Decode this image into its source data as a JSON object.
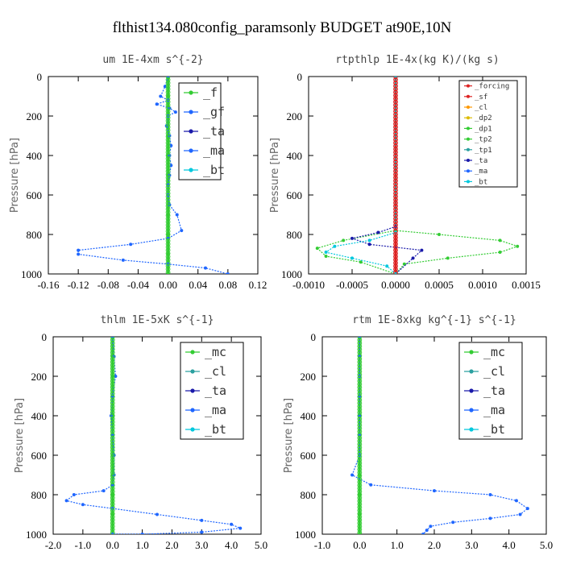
{
  "figure": {
    "title": "flthist134.080config_paramsonly  BUDGET at90E,10N"
  },
  "colors": {
    "green": "#33cc33",
    "blue": "#1f66ff",
    "navy": "#1a1aaa",
    "cyan": "#00c8dd",
    "red": "#dd2222",
    "orange": "#ff9900",
    "gold": "#ddbb00",
    "teal": "#2aa0a0"
  },
  "chart_data": [
    {
      "type": "line",
      "title": "um  1E-4xm s^{-2}",
      "ylabel": "Pressure [hPa]",
      "xlim": [
        -0.16,
        0.12
      ],
      "ylim": [
        1000,
        0
      ],
      "xticks": [
        "-0.16",
        "-0.12",
        "-0.08",
        "-0.04",
        "0.00",
        "0.04",
        "0.08",
        "0.12"
      ],
      "yticks": [
        "0",
        "200",
        "400",
        "600",
        "800",
        "1000"
      ],
      "legend": [
        "_f",
        "_gf",
        "_ta",
        "_ma",
        "_bt"
      ],
      "series": [
        {
          "name": "_f",
          "color_key": "green",
          "x": [
            0,
            0,
            0,
            0,
            0,
            0,
            0,
            0,
            0,
            0,
            0
          ],
          "y": [
            0,
            100,
            200,
            300,
            400,
            500,
            600,
            700,
            800,
            900,
            1000
          ]
        },
        {
          "name": "_ta",
          "color_key": "blue",
          "x": [
            0.0,
            -0.004,
            -0.01,
            0.0,
            -0.015,
            0.002,
            0.01,
            0.0,
            -0.002,
            0.002,
            0.004,
            0.002,
            0.004,
            0.002,
            0.0,
            0.0,
            0.002,
            0.012,
            0.018,
            0.0,
            -0.05,
            -0.12,
            -0.12,
            -0.06,
            0.0,
            0.05,
            0.08
          ],
          "y": [
            0,
            50,
            100,
            120,
            140,
            160,
            180,
            200,
            250,
            300,
            350,
            400,
            450,
            500,
            550,
            600,
            650,
            700,
            780,
            820,
            850,
            880,
            900,
            930,
            950,
            970,
            1000
          ]
        }
      ]
    },
    {
      "type": "line",
      "title": "rtpthlp  1E-4x(kg K)/(kg s)",
      "ylabel": "Pressure [hPa]",
      "xlim": [
        -0.001,
        0.0015
      ],
      "ylim": [
        1000,
        0
      ],
      "xticks": [
        "-0.0010",
        "-0.0005",
        "0.0000",
        "0.0005",
        "0.0010",
        "0.0015"
      ],
      "yticks": [
        "0",
        "200",
        "400",
        "600",
        "800",
        "1000"
      ],
      "legend": [
        "_forcing",
        "_sf",
        "_cl",
        "_dp2",
        "_dp1",
        "_tp2",
        "_tp1",
        "_ta",
        "_ma",
        "_bt"
      ],
      "series": [
        {
          "name": "_forcing",
          "color_key": "red",
          "x": [
            0,
            0
          ],
          "y": [
            0,
            1000
          ]
        },
        {
          "name": "_tp2",
          "color_key": "green",
          "x": [
            0.0,
            0.0,
            0.0005,
            0.0012,
            0.0014,
            0.0012,
            0.0006,
            0.0001,
            0.0
          ],
          "y": [
            0,
            780,
            800,
            830,
            860,
            890,
            920,
            950,
            1000
          ]
        },
        {
          "name": "_dp1",
          "color_key": "green",
          "x": [
            0.0,
            0.0,
            -0.0006,
            -0.0009,
            -0.0008,
            -0.0004,
            0.0
          ],
          "y": [
            0,
            780,
            830,
            870,
            910,
            940,
            1000
          ]
        },
        {
          "name": "_ta",
          "color_key": "navy",
          "x": [
            0.0,
            0.0,
            -0.0002,
            -0.0005,
            -0.0003,
            0.0003,
            0.0002,
            0.0
          ],
          "y": [
            0,
            760,
            790,
            820,
            850,
            880,
            920,
            1000
          ]
        },
        {
          "name": "_bt",
          "color_key": "cyan",
          "x": [
            0.0,
            0.0,
            -0.0003,
            -0.0007,
            -0.0008,
            -0.0005,
            -0.0001,
            0.0
          ],
          "y": [
            0,
            790,
            830,
            860,
            890,
            920,
            960,
            1000
          ]
        }
      ]
    },
    {
      "type": "line",
      "title": "thlm  1E-5xK s^{-1}",
      "ylabel": "Pressure [hPa]",
      "xlim": [
        -2.0,
        5.0
      ],
      "ylim": [
        1000,
        0
      ],
      "xticks": [
        "-2.0",
        "-1.0",
        "0.0",
        "1.0",
        "2.0",
        "3.0",
        "4.0",
        "5.0"
      ],
      "yticks": [
        "0",
        "200",
        "400",
        "600",
        "800",
        "1000"
      ],
      "legend": [
        "_mc",
        "_cl",
        "_ta",
        "_ma",
        "_bt"
      ],
      "series": [
        {
          "name": "_mc",
          "color_key": "green",
          "x": [
            0,
            0,
            0,
            0,
            0,
            0,
            0,
            0,
            0,
            0,
            0
          ],
          "y": [
            0,
            100,
            200,
            300,
            400,
            500,
            600,
            700,
            800,
            900,
            1000
          ]
        },
        {
          "name": "_cl",
          "color_key": "blue",
          "x": [
            0.0,
            0.05,
            0.1,
            0.0,
            -0.05,
            0.0,
            0.05,
            0.05,
            0.0,
            -0.3,
            -1.3,
            -1.55,
            -1.0,
            0.0,
            1.5,
            3.0,
            4.0,
            4.3,
            3.0,
            1.0,
            0.0
          ],
          "y": [
            0,
            100,
            200,
            300,
            400,
            500,
            600,
            700,
            750,
            780,
            800,
            830,
            850,
            870,
            900,
            930,
            950,
            970,
            990,
            1000,
            1000
          ]
        }
      ]
    },
    {
      "type": "line",
      "title": "rtm  1E-8xkg kg^{-1} s^{-1}",
      "ylabel": "Pressure [hPa]",
      "xlim": [
        -1.0,
        5.0
      ],
      "ylim": [
        1000,
        0
      ],
      "xticks": [
        "-1.0",
        "0.0",
        "1.0",
        "2.0",
        "3.0",
        "4.0",
        "5.0"
      ],
      "yticks": [
        "0",
        "200",
        "400",
        "600",
        "800",
        "1000"
      ],
      "legend": [
        "_mc",
        "_cl",
        "_ta",
        "_ma",
        "_bt"
      ],
      "series": [
        {
          "name": "_mc",
          "color_key": "green",
          "x": [
            0,
            0,
            0,
            0,
            0,
            0,
            0,
            0,
            0,
            0,
            0
          ],
          "y": [
            0,
            100,
            200,
            300,
            400,
            500,
            600,
            700,
            800,
            900,
            1000
          ]
        },
        {
          "name": "_cl",
          "color_key": "blue",
          "x": [
            0.0,
            0.0,
            0.0,
            0.0,
            0.0,
            0.0,
            0.0,
            -0.2,
            0.3,
            2.0,
            3.5,
            4.2,
            4.5,
            4.3,
            3.5,
            2.5,
            1.9,
            1.8,
            1.7
          ],
          "y": [
            0,
            100,
            200,
            300,
            400,
            500,
            600,
            700,
            750,
            780,
            800,
            830,
            870,
            900,
            920,
            940,
            960,
            980,
            1000
          ]
        }
      ]
    }
  ]
}
